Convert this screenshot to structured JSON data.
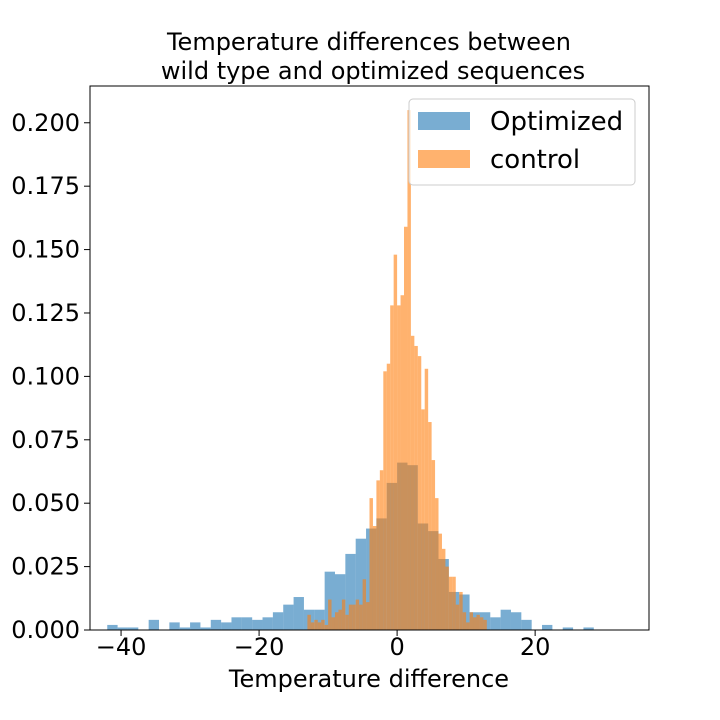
{
  "chart_data": {
    "type": "histogram",
    "title_lines": [
      "Temperature differences between",
      "wild type and optimized sequences"
    ],
    "xlabel": "Temperature difference",
    "ylabel": "",
    "xlim": [
      -44.5,
      36.5
    ],
    "ylim": [
      0,
      0.2145
    ],
    "xticks": [
      -40,
      -20,
      0,
      20
    ],
    "xtick_labels": [
      "−40",
      "−20",
      "0",
      "20"
    ],
    "yticks": [
      0.0,
      0.025,
      0.05,
      0.075,
      0.1,
      0.125,
      0.15,
      0.175,
      0.2
    ],
    "ytick_labels": [
      "0.000",
      "0.025",
      "0.050",
      "0.075",
      "0.100",
      "0.125",
      "0.150",
      "0.175",
      "0.200"
    ],
    "grid": false,
    "legend": {
      "placement": "top-right"
    },
    "series": [
      {
        "name": "Optimized",
        "color": "#1f77b4",
        "opacity": 0.6,
        "bin_start": -42.0,
        "bin_width": 1.5,
        "values": [
          0.002,
          0.001,
          0.001,
          0,
          0.004,
          0,
          0.003,
          0.001,
          0.003,
          0.001,
          0.004,
          0.003,
          0.005,
          0.005,
          0.004,
          0.005,
          0.007,
          0.01,
          0.013,
          0.008,
          0.008,
          0.023,
          0.022,
          0.03,
          0.036,
          0.04,
          0.044,
          0.058,
          0.066,
          0.065,
          0.042,
          0.039,
          0.028,
          0.015,
          0.014,
          0.007,
          0.007,
          0.005,
          0.008,
          0.007,
          0.004,
          0,
          0.002,
          0,
          0.001,
          0,
          0.001
        ]
      },
      {
        "name": "control",
        "color": "#ff7f0e",
        "opacity": 0.6,
        "bin_start": -13.0,
        "bin_width": 0.5,
        "values": [
          0.006,
          0.003,
          0.004,
          0.003,
          0.004,
          0.002,
          0.012,
          0.005,
          0.007,
          0.008,
          0.012,
          0.006,
          0.01,
          0.01,
          0.012,
          0.01,
          0.02,
          0.011,
          0.052,
          0.041,
          0.059,
          0.063,
          0.102,
          0.105,
          0.128,
          0.148,
          0.128,
          0.132,
          0.159,
          0.205,
          0.116,
          0.112,
          0.108,
          0.087,
          0.103,
          0.082,
          0.067,
          0.052,
          0.038,
          0.032,
          0.025,
          0.021,
          0.021,
          0.01,
          0.015,
          0.007,
          0.003,
          0.007,
          0.005,
          0.006,
          0.005,
          0.004
        ]
      }
    ]
  }
}
